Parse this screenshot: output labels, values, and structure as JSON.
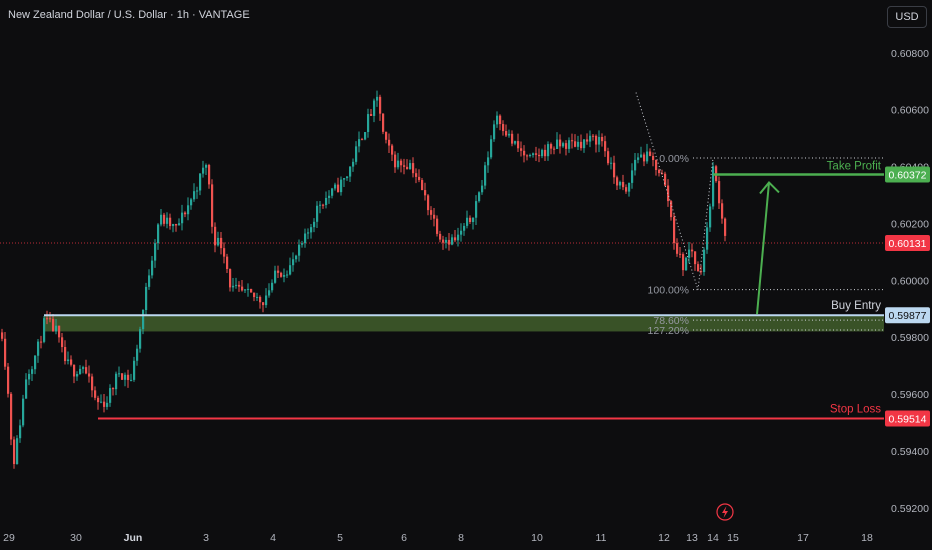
{
  "header": {
    "title": "New Zealand Dollar / U.S. Dollar · 1h · VANTAGE",
    "currency_button": "USD"
  },
  "colors": {
    "up": "#26a69a",
    "down": "#ef5350",
    "green_zone": "#3e5a2a",
    "take_profit": "#4caf50",
    "stop_loss": "#f23645",
    "buy_entry": "#bcd8f0",
    "current_price": "#f23645",
    "background": "#0d0d0f"
  },
  "icons": {
    "lightning": "lightning-icon"
  },
  "chart_data": {
    "type": "candlestick",
    "title": "New Zealand Dollar / U.S. Dollar · 1h · VANTAGE",
    "y_axis": {
      "ticks": [
        "0.60800",
        "0.60600",
        "0.60400",
        "0.60200",
        "0.60000",
        "0.59800",
        "0.59600",
        "0.59400",
        "0.59200"
      ],
      "ylim": [
        0.5915,
        0.6088
      ]
    },
    "x_axis": {
      "tick_labels": [
        "29",
        "30",
        "Jun",
        "3",
        "4",
        "5",
        "6",
        "8",
        "10",
        "11",
        "12",
        "13",
        "14",
        "15",
        "17",
        "18"
      ]
    },
    "price_labels": {
      "take_profit": "0.60372",
      "current": "0.60131",
      "buy_entry": "0.59877",
      "stop_loss": "0.59514"
    },
    "levels": {
      "take_profit": 0.60372,
      "current": 0.60131,
      "buy_entry": 0.59877,
      "stop_loss": 0.59514,
      "zone_low": 0.5982
    },
    "annotations": {
      "take_profit": "Take Profit",
      "buy_entry": "Buy Entry",
      "stop_loss": "Stop Loss"
    },
    "fibonacci": [
      {
        "label": "0.00%",
        "value": 0.6043
      },
      {
        "label": "100.00%",
        "value": 0.59967
      },
      {
        "label": "78.60%",
        "value": 0.5986
      },
      {
        "label": "127.20%",
        "value": 0.59825
      }
    ],
    "price_path": [
      [
        0,
        0.5985
      ],
      [
        6,
        0.5965
      ],
      [
        12,
        0.5935
      ],
      [
        17,
        0.5945
      ],
      [
        25,
        0.5966
      ],
      [
        36,
        0.5975
      ],
      [
        44,
        0.5986
      ],
      [
        55,
        0.5982
      ],
      [
        63,
        0.5972
      ],
      [
        72,
        0.5968
      ],
      [
        82,
        0.597
      ],
      [
        95,
        0.5957
      ],
      [
        105,
        0.5957
      ],
      [
        118,
        0.5968
      ],
      [
        130,
        0.5965
      ],
      [
        140,
        0.5985
      ],
      [
        148,
        0.6003
      ],
      [
        158,
        0.6022
      ],
      [
        175,
        0.6018
      ],
      [
        192,
        0.603
      ],
      [
        206,
        0.6042
      ],
      [
        212,
        0.6015
      ],
      [
        222,
        0.6012
      ],
      [
        230,
        0.5997
      ],
      [
        245,
        0.5995
      ],
      [
        262,
        0.5993
      ],
      [
        275,
        0.6002
      ],
      [
        290,
        0.6005
      ],
      [
        305,
        0.6015
      ],
      [
        318,
        0.6027
      ],
      [
        332,
        0.6031
      ],
      [
        345,
        0.6036
      ],
      [
        365,
        0.6055
      ],
      [
        377,
        0.6064
      ],
      [
        383,
        0.6049
      ],
      [
        395,
        0.6041
      ],
      [
        410,
        0.6041
      ],
      [
        425,
        0.6028
      ],
      [
        440,
        0.6015
      ],
      [
        455,
        0.6014
      ],
      [
        470,
        0.6022
      ],
      [
        482,
        0.6035
      ],
      [
        495,
        0.6059
      ],
      [
        510,
        0.6049
      ],
      [
        528,
        0.6042
      ],
      [
        550,
        0.6047
      ],
      [
        570,
        0.6048
      ],
      [
        588,
        0.6049
      ],
      [
        600,
        0.605
      ],
      [
        612,
        0.6037
      ],
      [
        625,
        0.603
      ],
      [
        635,
        0.6044
      ],
      [
        648,
        0.6043
      ],
      [
        660,
        0.6038
      ],
      [
        668,
        0.6027
      ],
      [
        674,
        0.6012
      ],
      [
        682,
        0.6005
      ],
      [
        690,
        0.6012
      ],
      [
        698,
        0.6001
      ],
      [
        706,
        0.6017
      ],
      [
        712,
        0.6039
      ],
      [
        718,
        0.6029
      ],
      [
        726,
        0.6012
      ]
    ],
    "grid": false
  }
}
